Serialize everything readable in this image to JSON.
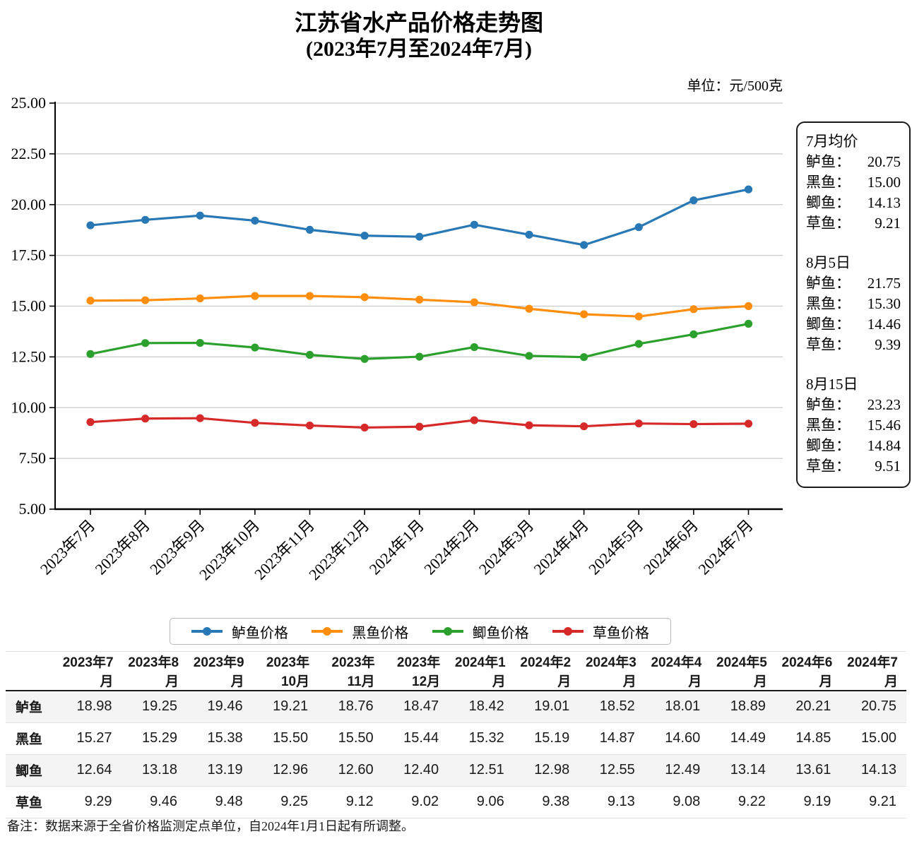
{
  "title": {
    "line1": "江苏省水产品价格走势图",
    "line2": "(2023年7月至2024年7月)"
  },
  "unit_label": "单位：元/500克",
  "chart_data": {
    "type": "line",
    "title": "江苏省水产品价格走势图",
    "subtitle": "(2023年7月至2024年7月)",
    "x": [
      "2023年7月",
      "2023年8月",
      "2023年9月",
      "2023年10月",
      "2023年11月",
      "2023年12月",
      "2024年1月",
      "2024年2月",
      "2024年3月",
      "2024年4月",
      "2024年5月",
      "2024年6月",
      "2024年7月"
    ],
    "ylim": [
      5,
      25
    ],
    "ytick_labels": [
      "25.00",
      "22.50",
      "20.00",
      "17.50",
      "15.00",
      "12.50",
      "10.00",
      "7.50",
      "5.00"
    ],
    "grid": true,
    "legend_position": "bottom",
    "colors": {
      "axis": "#000000",
      "gridline": "#c9c9c9"
    },
    "series": [
      {
        "name": "鲈鱼价格",
        "color": "#2878b5",
        "values": [
          18.98,
          19.25,
          19.46,
          19.21,
          18.76,
          18.47,
          18.42,
          19.01,
          18.52,
          18.01,
          18.89,
          20.21,
          20.75
        ]
      },
      {
        "name": "黑鱼价格",
        "color": "#ff8e0e",
        "values": [
          15.27,
          15.29,
          15.38,
          15.5,
          15.5,
          15.44,
          15.32,
          15.19,
          14.87,
          14.6,
          14.49,
          14.85,
          15.0
        ]
      },
      {
        "name": "鲫鱼价格",
        "color": "#2ca02c",
        "values": [
          12.64,
          13.18,
          13.19,
          12.96,
          12.6,
          12.4,
          12.51,
          12.98,
          12.55,
          12.49,
          13.14,
          13.61,
          14.13
        ]
      },
      {
        "name": "草鱼价格",
        "color": "#d62929",
        "values": [
          9.29,
          9.46,
          9.48,
          9.25,
          9.12,
          9.02,
          9.06,
          9.38,
          9.13,
          9.08,
          9.22,
          9.19,
          9.21
        ]
      }
    ]
  },
  "summary_panel": {
    "sections": [
      {
        "title": "7月均价",
        "entries": [
          {
            "label": "鲈鱼：",
            "value": "20.75"
          },
          {
            "label": "黑鱼：",
            "value": "15.00"
          },
          {
            "label": "鲫鱼：",
            "value": "14.13"
          },
          {
            "label": "草鱼：",
            "value": "9.21"
          }
        ]
      },
      {
        "title": "8月5日",
        "entries": [
          {
            "label": "鲈鱼：",
            "value": "21.75"
          },
          {
            "label": "黑鱼：",
            "value": "15.30"
          },
          {
            "label": "鲫鱼：",
            "value": "14.46"
          },
          {
            "label": "草鱼：",
            "value": "9.39"
          }
        ]
      },
      {
        "title": "8月15日",
        "entries": [
          {
            "label": "鲈鱼：",
            "value": "23.23"
          },
          {
            "label": "黑鱼：",
            "value": "15.46"
          },
          {
            "label": "鲫鱼：",
            "value": "14.84"
          },
          {
            "label": "草鱼：",
            "value": "9.51"
          }
        ]
      }
    ]
  },
  "legend": {
    "items": [
      "鲈鱼价格",
      "黑鱼价格",
      "鲫鱼价格",
      "草鱼价格"
    ]
  },
  "table": {
    "columns": [
      "2023年7月",
      "2023年8月",
      "2023年9月",
      "2023年10月",
      "2023年11月",
      "2023年12月",
      "2024年1月",
      "2024年2月",
      "2024年3月",
      "2024年4月",
      "2024年5月",
      "2024年6月",
      "2024年7月"
    ],
    "rows": [
      {
        "label": "鲈鱼",
        "values": [
          "18.98",
          "19.25",
          "19.46",
          "19.21",
          "18.76",
          "18.47",
          "18.42",
          "19.01",
          "18.52",
          "18.01",
          "18.89",
          "20.21",
          "20.75"
        ]
      },
      {
        "label": "黑鱼",
        "values": [
          "15.27",
          "15.29",
          "15.38",
          "15.50",
          "15.50",
          "15.44",
          "15.32",
          "15.19",
          "14.87",
          "14.60",
          "14.49",
          "14.85",
          "15.00"
        ]
      },
      {
        "label": "鲫鱼",
        "values": [
          "12.64",
          "13.18",
          "13.19",
          "12.96",
          "12.60",
          "12.40",
          "12.51",
          "12.98",
          "12.55",
          "12.49",
          "13.14",
          "13.61",
          "14.13"
        ]
      },
      {
        "label": "草鱼",
        "values": [
          "9.29",
          "9.46",
          "9.48",
          "9.25",
          "9.12",
          "9.02",
          "9.06",
          "9.38",
          "9.13",
          "9.08",
          "9.22",
          "9.19",
          "9.21"
        ]
      }
    ]
  },
  "note": "备注：数据来源于全省价格监测定点单位，自2024年1月1日起有所调整。"
}
